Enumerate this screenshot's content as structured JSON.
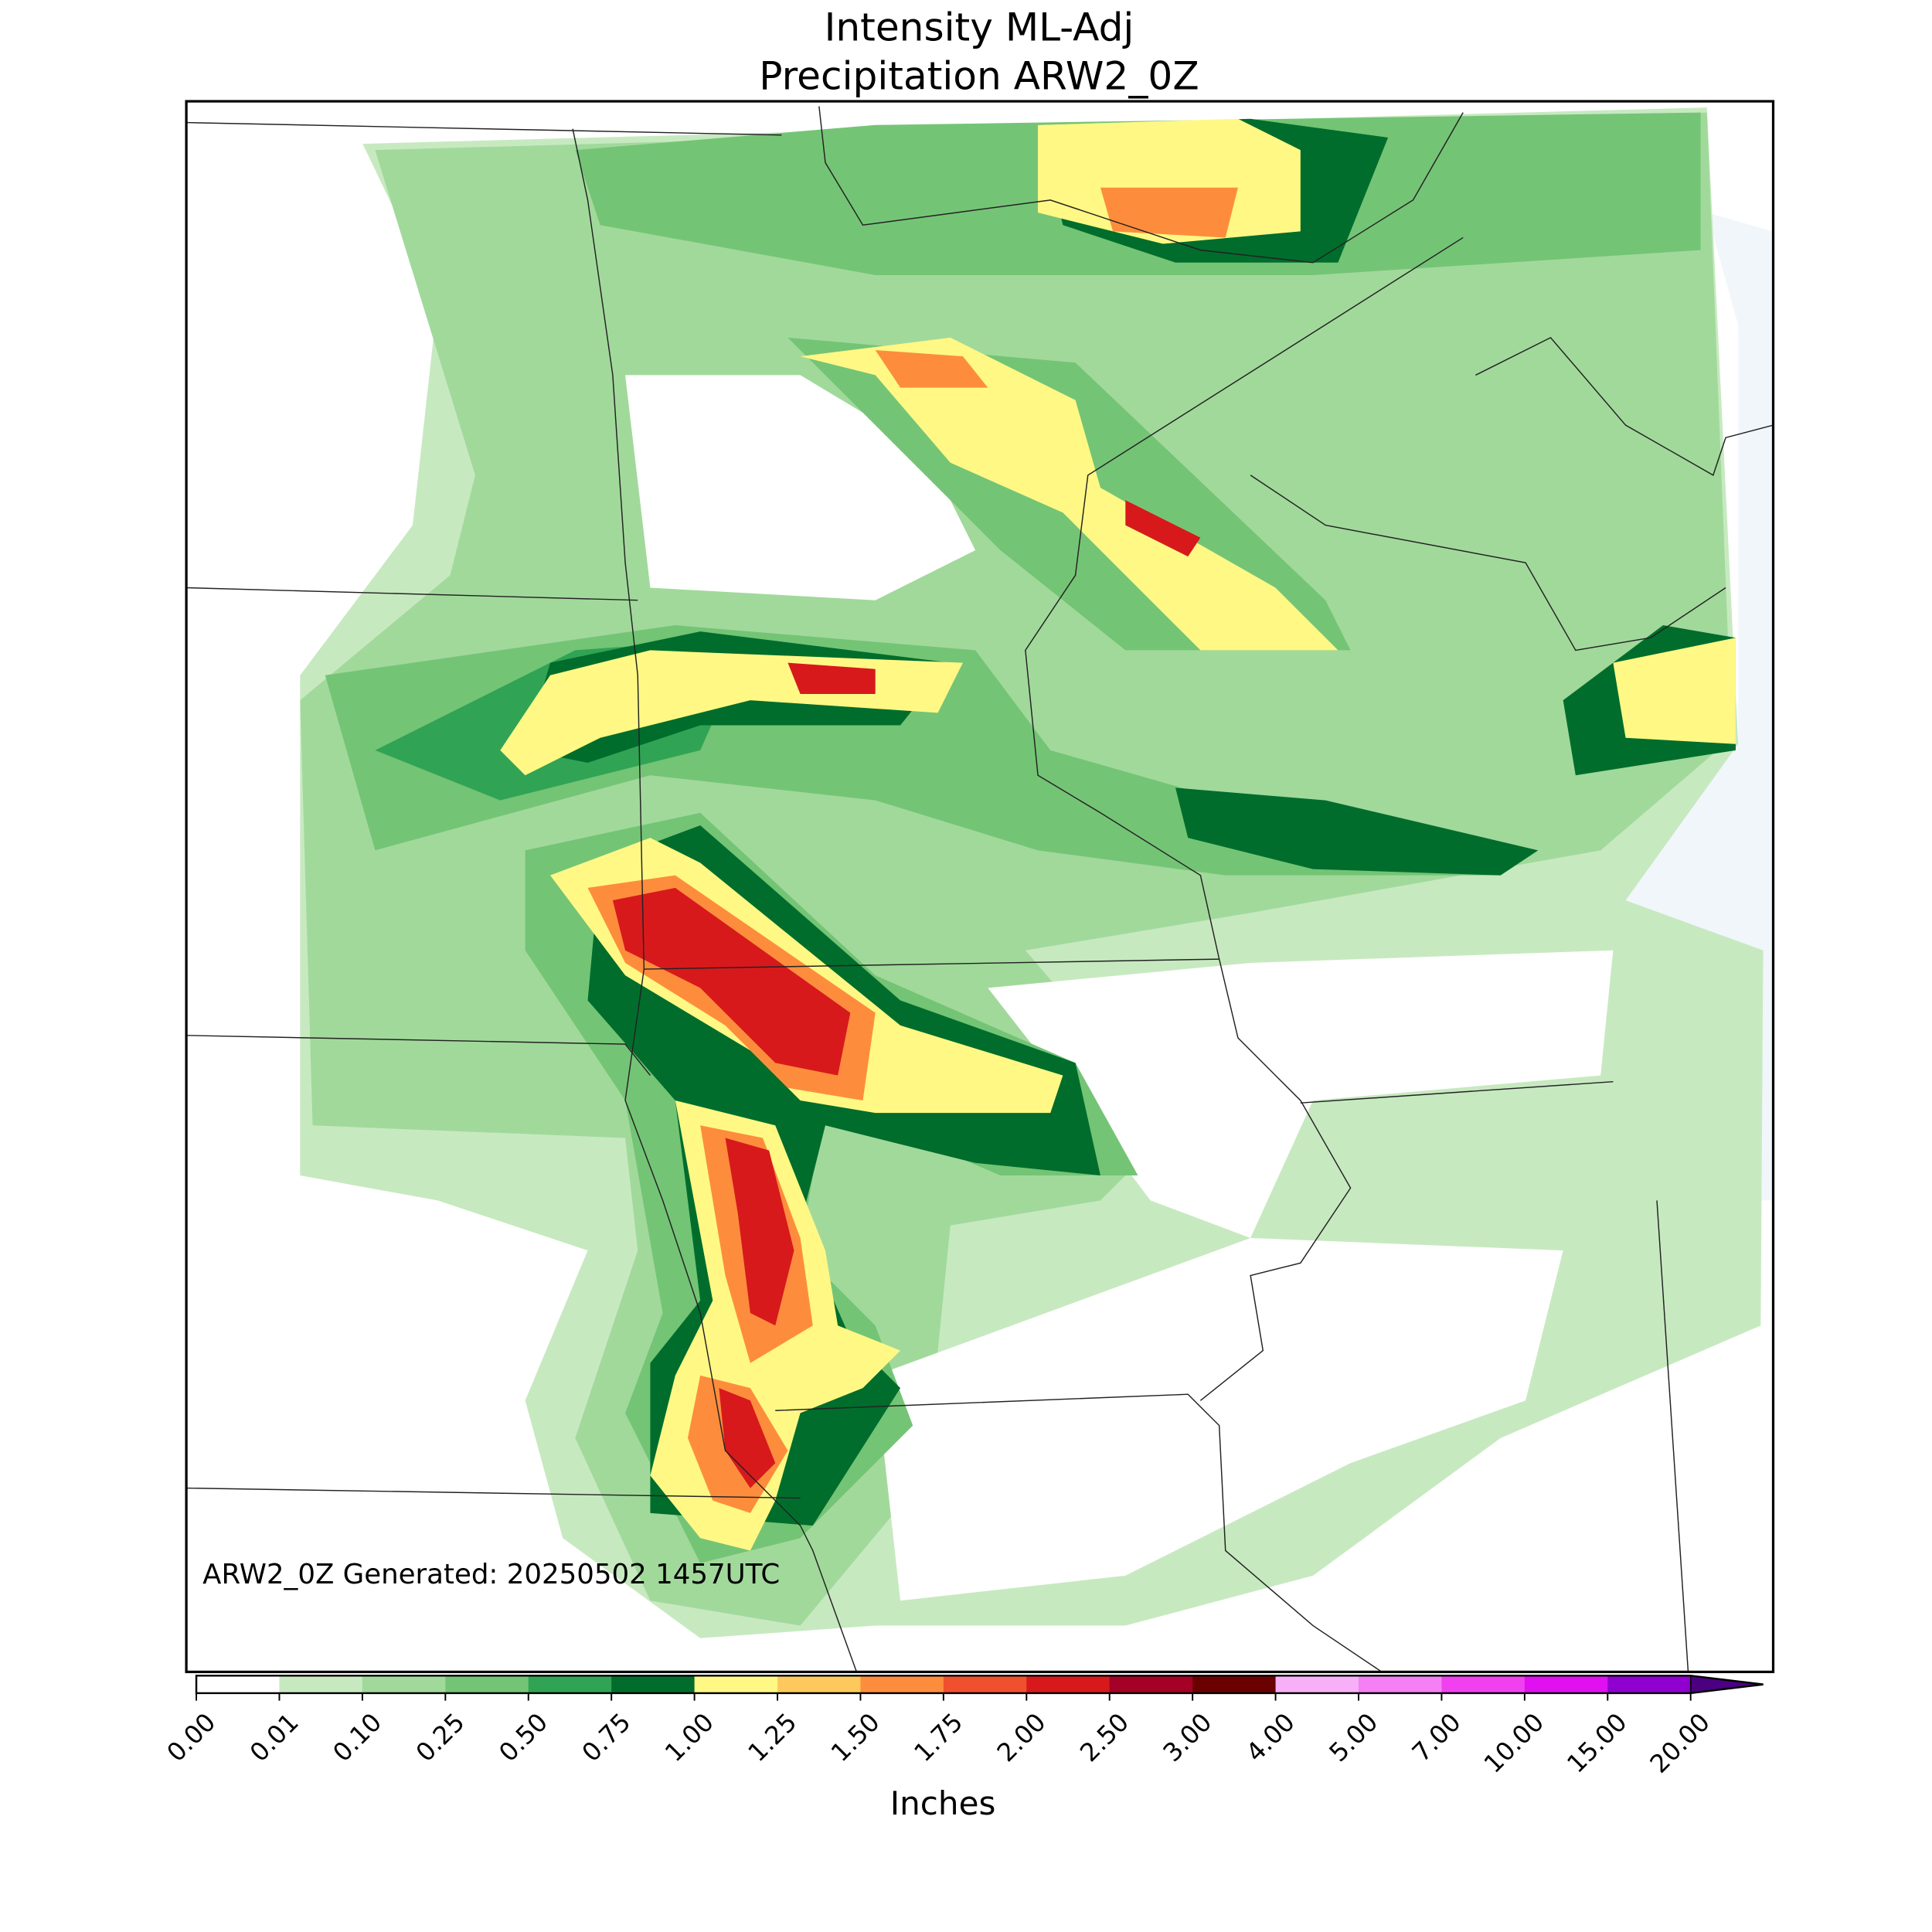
{
  "title": "Intensity ML-Adj",
  "subtitle": "Precipitation ARW2_0Z",
  "annotation": "ARW2_0Z Generated: 20250502 1457UTC",
  "colorbar": {
    "label": "Inches",
    "ticks": [
      {
        "value": 0,
        "label": "0.00"
      },
      {
        "value": 0.01,
        "label": "0.01"
      },
      {
        "value": 0.1,
        "label": "0.10"
      },
      {
        "value": 0.25,
        "label": "0.25"
      },
      {
        "value": 0.5,
        "label": "0.50"
      },
      {
        "value": 0.75,
        "label": "0.75"
      },
      {
        "value": 1,
        "label": "1.00"
      },
      {
        "value": 1.25,
        "label": "1.25"
      },
      {
        "value": 1.5,
        "label": "1.50"
      },
      {
        "value": 1.75,
        "label": "1.75"
      },
      {
        "value": 2,
        "label": "2.00"
      },
      {
        "value": 2.5,
        "label": "2.50"
      },
      {
        "value": 3,
        "label": "3.00"
      },
      {
        "value": 4,
        "label": "4.00"
      },
      {
        "value": 5,
        "label": "5.00"
      },
      {
        "value": 7,
        "label": "7.00"
      },
      {
        "value": 10,
        "label": "10.00"
      },
      {
        "value": 15,
        "label": "15.00"
      },
      {
        "value": 20,
        "label": "20.00"
      }
    ],
    "colors": [
      "#ffffff",
      "#c7e9c0",
      "#a1d99b",
      "#74c476",
      "#31a354",
      "#006d2c",
      "#fff885",
      "#fdc95c",
      "#fd8d3c",
      "#f0502e",
      "#d7191c",
      "#a50026",
      "#6b0000",
      "#f7b0f7",
      "#f580f5",
      "#f040f0",
      "#e010f0",
      "#9000d0"
    ],
    "extend_color": "#4b0082"
  }
}
